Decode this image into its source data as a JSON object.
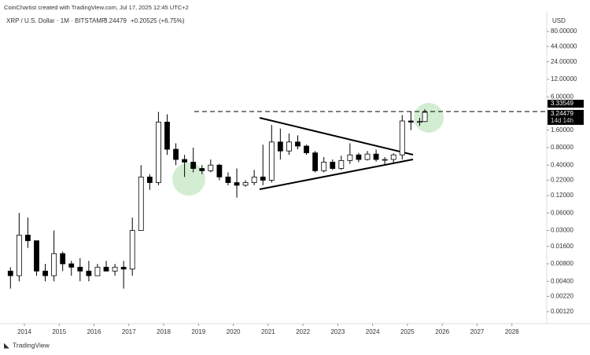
{
  "chart_data": {
    "type": "candlestick",
    "credit": "CoinChartist created with TradingView.com, Jul 17, 2025 12:45 UTC+2",
    "title": "XRP / U.S. Dollar · 1M · BITSTAMP",
    "last": 3.24479,
    "change": "+0.20525 (+6.75%)",
    "currency": "USD",
    "footer": "TradingView",
    "up_color": "#ffffff",
    "down_color": "#000000",
    "edge_color": "#000000",
    "log_scale": true,
    "grid": false,
    "x": [
      2013.6,
      2013.85,
      2014.1,
      2014.35,
      2014.6,
      2014.85,
      2015.1,
      2015.35,
      2015.6,
      2015.85,
      2016.1,
      2016.35,
      2016.6,
      2016.85,
      2017.1,
      2017.35,
      2017.6,
      2017.85,
      2018.1,
      2018.35,
      2018.6,
      2018.85,
      2019.1,
      2019.35,
      2019.6,
      2019.85,
      2020.1,
      2020.35,
      2020.6,
      2020.85,
      2021.1,
      2021.35,
      2021.6,
      2021.85,
      2022.1,
      2022.35,
      2022.6,
      2022.85,
      2023.1,
      2023.35,
      2023.6,
      2023.85,
      2024.1,
      2024.35,
      2024.6,
      2024.85,
      2025.1,
      2025.35,
      2025.5
    ],
    "open": [
      0.006,
      0.005,
      0.025,
      0.02,
      0.006,
      0.005,
      0.012,
      0.008,
      0.007,
      0.006,
      0.005,
      0.007,
      0.006,
      0.007,
      0.0065,
      0.03,
      0.25,
      0.2,
      2.2,
      0.75,
      0.5,
      0.45,
      0.35,
      0.32,
      0.4,
      0.25,
      0.2,
      0.18,
      0.2,
      0.25,
      0.22,
      1.0,
      0.7,
      1.0,
      0.85,
      0.65,
      0.32,
      0.45,
      0.35,
      0.48,
      0.6,
      0.5,
      0.62,
      0.5,
      0.5,
      0.6,
      2.3,
      2.2,
      2.25
    ],
    "high": [
      0.007,
      0.06,
      0.05,
      0.02,
      0.008,
      0.03,
      0.013,
      0.009,
      0.01,
      0.009,
      0.008,
      0.009,
      0.008,
      0.009,
      0.05,
      0.4,
      0.28,
      3.3,
      3.0,
      0.95,
      0.6,
      0.8,
      0.4,
      0.5,
      0.42,
      0.3,
      0.35,
      0.22,
      0.33,
      0.9,
      1.96,
      1.7,
      1.4,
      1.3,
      0.9,
      0.7,
      0.55,
      0.5,
      0.58,
      0.95,
      0.65,
      0.7,
      0.74,
      0.55,
      0.64,
      2.9,
      3.4,
      2.6,
      3.66
    ],
    "low": [
      0.003,
      0.004,
      0.015,
      0.005,
      0.004,
      0.004,
      0.006,
      0.005,
      0.004,
      0.004,
      0.005,
      0.006,
      0.005,
      0.003,
      0.005,
      0.03,
      0.15,
      0.18,
      0.6,
      0.4,
      0.25,
      0.3,
      0.28,
      0.3,
      0.22,
      0.18,
      0.11,
      0.17,
      0.18,
      0.18,
      0.2,
      0.5,
      0.6,
      0.75,
      0.6,
      0.3,
      0.3,
      0.33,
      0.33,
      0.42,
      0.45,
      0.48,
      0.46,
      0.4,
      0.43,
      0.5,
      1.6,
      1.9,
      2.2
    ],
    "close": [
      0.005,
      0.025,
      0.02,
      0.006,
      0.005,
      0.012,
      0.008,
      0.007,
      0.006,
      0.005,
      0.007,
      0.006,
      0.007,
      0.0065,
      0.03,
      0.25,
      0.2,
      2.2,
      0.75,
      0.5,
      0.45,
      0.35,
      0.32,
      0.4,
      0.25,
      0.2,
      0.18,
      0.2,
      0.25,
      0.22,
      1.0,
      0.7,
      1.0,
      0.85,
      0.65,
      0.32,
      0.45,
      0.35,
      0.48,
      0.6,
      0.5,
      0.62,
      0.5,
      0.5,
      0.6,
      2.3,
      2.2,
      2.25,
      3.24479
    ],
    "xlim": [
      2013.3,
      2029.0
    ],
    "xticks": [
      2014,
      2015,
      2016,
      2017,
      2018,
      2019,
      2020,
      2021,
      2022,
      2023,
      2024,
      2025,
      2026,
      2027,
      2028
    ],
    "ylim": [
      0.00075,
      140
    ],
    "yticks": [
      {
        "value": 80,
        "label": "80.00000"
      },
      {
        "value": 44,
        "label": "44.00000"
      },
      {
        "value": 24,
        "label": "24.00000"
      },
      {
        "value": 12,
        "label": "12.00000"
      },
      {
        "value": 6,
        "label": "6.00000"
      },
      {
        "value": 1.6,
        "label": "1.60000"
      },
      {
        "value": 0.8,
        "label": "0.80000"
      },
      {
        "value": 0.4,
        "label": "0.40000"
      },
      {
        "value": 0.22,
        "label": "0.22000"
      },
      {
        "value": 0.12,
        "label": "0.12000"
      },
      {
        "value": 0.06,
        "label": "0.06000"
      },
      {
        "value": 0.03,
        "label": "0.03000"
      },
      {
        "value": 0.016,
        "label": "0.01600"
      },
      {
        "value": 0.008,
        "label": "0.00800"
      },
      {
        "value": 0.004,
        "label": "0.00400"
      },
      {
        "value": 0.0022,
        "label": "0.00220"
      },
      {
        "value": 0.0012,
        "label": "0.00120"
      }
    ],
    "price_labels": [
      {
        "value": 3.33549,
        "label": "3.33549"
      },
      {
        "value": 3.24479,
        "label": "3.24479"
      }
    ],
    "countdown": "14d 14h"
  }
}
